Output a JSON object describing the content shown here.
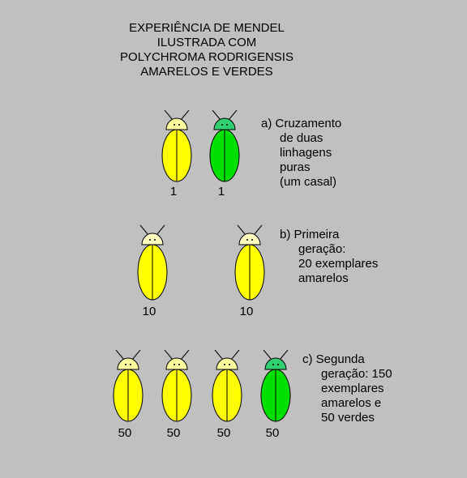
{
  "title_lines": [
    "EXPERIÊNCIA DE MENDEL",
    "ILUSTRADA COM",
    "POLYCHROMA RODRIGENSIS",
    "AMARELOS E VERDES"
  ],
  "sections": [
    {
      "beetles": [
        {
          "count": "1",
          "body_color": "#ffff00",
          "head_color": "#ffffa0"
        },
        {
          "count": "1",
          "body_color": "#00e000",
          "head_color": "#30d070"
        }
      ],
      "lines": [
        "a) Cruzamento",
        "de duas",
        "linhagens",
        "puras",
        "(um casal)"
      ]
    },
    {
      "beetles": [
        {
          "count": "10",
          "body_color": "#ffff00",
          "head_color": "#ffffc0"
        },
        {
          "count": "10",
          "body_color": "#ffff00",
          "head_color": "#ffffc0"
        }
      ],
      "lines": [
        "b) Primeira",
        "geração:",
        "20 exemplares",
        "amarelos"
      ]
    },
    {
      "beetles": [
        {
          "count": "50",
          "body_color": "#ffff00",
          "head_color": "#ffffa0"
        },
        {
          "count": "50",
          "body_color": "#ffff00",
          "head_color": "#ffffa0"
        },
        {
          "count": "50",
          "body_color": "#ffff00",
          "head_color": "#ffffa0"
        },
        {
          "count": "50",
          "body_color": "#00e000",
          "head_color": "#30d070"
        }
      ],
      "lines": [
        "c) Segunda",
        "geração: 150",
        "exemplares",
        "amarelos e",
        "50 verdes"
      ]
    }
  ]
}
